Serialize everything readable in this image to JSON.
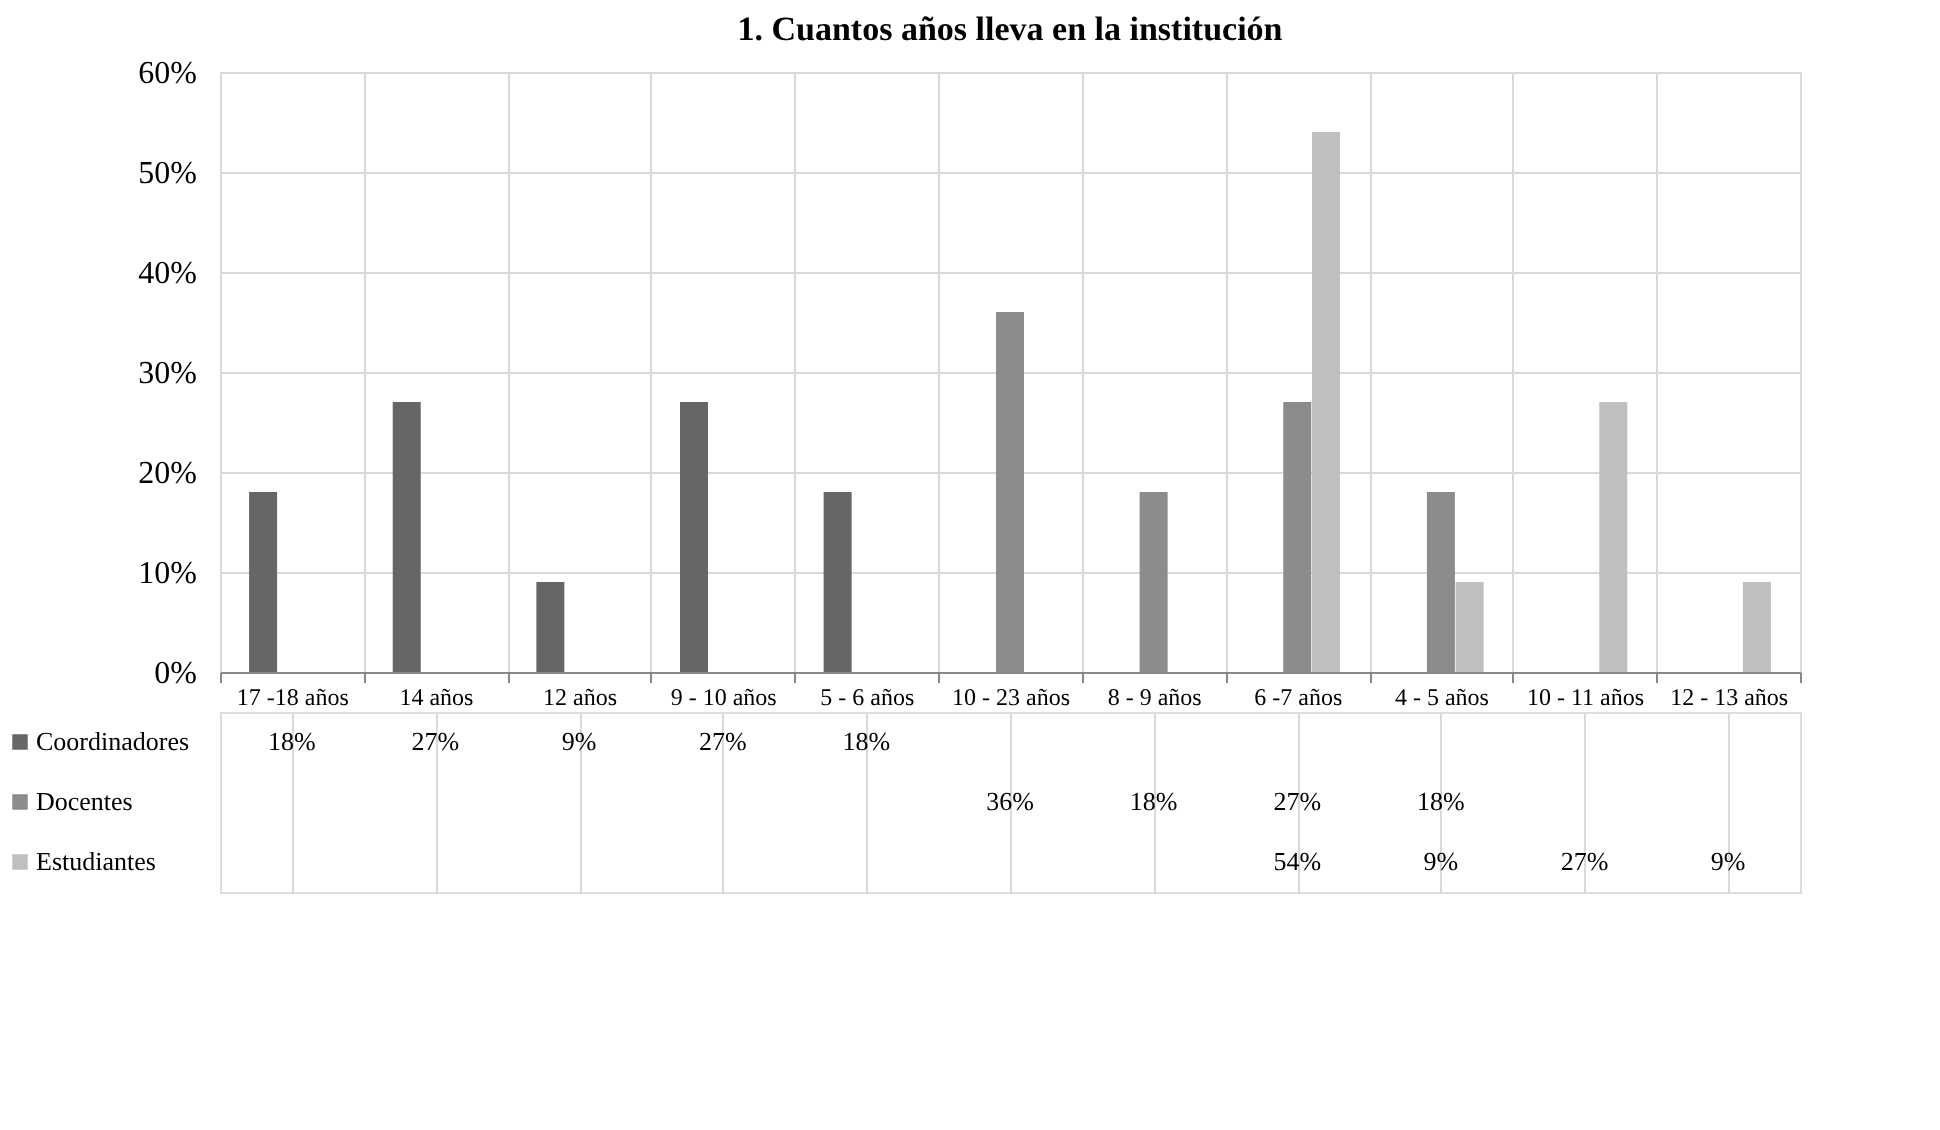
{
  "chart_data": {
    "type": "bar",
    "title": "1. Cuantos años lleva en la institución",
    "categories": [
      "17 -18 años",
      "14 años",
      "12 años",
      "9 - 10 años",
      "5 - 6 años",
      "10 - 23 años",
      "8 - 9 años",
      "6 -7 años",
      "4 - 5 años",
      "10 - 11 años",
      "12 - 13 años"
    ],
    "series": [
      {
        "name": "Coordinadores",
        "color": "#666666",
        "values": [
          18,
          27,
          9,
          27,
          18,
          null,
          null,
          null,
          null,
          null,
          null
        ],
        "value_labels": [
          "18%",
          "27%",
          "9%",
          "27%",
          "18%",
          null,
          null,
          null,
          null,
          null,
          null
        ]
      },
      {
        "name": "Docentes",
        "color": "#8c8c8c",
        "values": [
          null,
          null,
          null,
          null,
          null,
          36,
          18,
          27,
          18,
          null,
          null
        ],
        "value_labels": [
          null,
          null,
          null,
          null,
          null,
          "36%",
          "18%",
          "27%",
          "18%",
          null,
          null
        ]
      },
      {
        "name": "Estudiantes",
        "color": "#bfbfbf",
        "values": [
          null,
          null,
          null,
          null,
          null,
          null,
          null,
          54,
          9,
          27,
          9
        ],
        "value_labels": [
          null,
          null,
          null,
          null,
          null,
          null,
          null,
          "54%",
          "9%",
          "27%",
          "9%"
        ]
      }
    ],
    "ylim": [
      0,
      60
    ],
    "yticks": [
      {
        "value": 0,
        "label": "0%"
      },
      {
        "value": 10,
        "label": "10%"
      },
      {
        "value": 20,
        "label": "20%"
      },
      {
        "value": 30,
        "label": "30%"
      },
      {
        "value": 40,
        "label": "40%"
      },
      {
        "value": 50,
        "label": "50%"
      },
      {
        "value": 60,
        "label": "60%"
      }
    ],
    "grid": "y",
    "legend": "bottom"
  }
}
